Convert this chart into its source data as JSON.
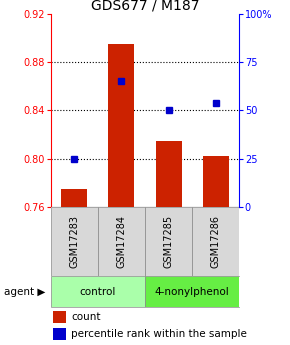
{
  "title": "GDS677 / M187",
  "samples": [
    "GSM17283",
    "GSM17284",
    "GSM17285",
    "GSM17286"
  ],
  "bar_values": [
    0.775,
    0.895,
    0.815,
    0.802
  ],
  "dot_values": [
    25.0,
    65.0,
    50.0,
    54.0
  ],
  "bar_color": "#cc2200",
  "dot_color": "#0000cc",
  "ylim_left": [
    0.76,
    0.92
  ],
  "ylim_right": [
    0,
    100
  ],
  "yticks_left": [
    0.76,
    0.8,
    0.84,
    0.88,
    0.92
  ],
  "ytick_labels_right": [
    "0",
    "25",
    "50",
    "75",
    "100%"
  ],
  "dotted_lines": [
    0.8,
    0.84,
    0.88
  ],
  "groups": [
    {
      "label": "control",
      "indices": [
        0,
        1
      ],
      "color": "#aaffaa"
    },
    {
      "label": "4-nonylphenol",
      "indices": [
        2,
        3
      ],
      "color": "#66ee44"
    }
  ],
  "bar_width": 0.55,
  "legend_count_label": "count",
  "legend_pct_label": "percentile rank within the sample"
}
